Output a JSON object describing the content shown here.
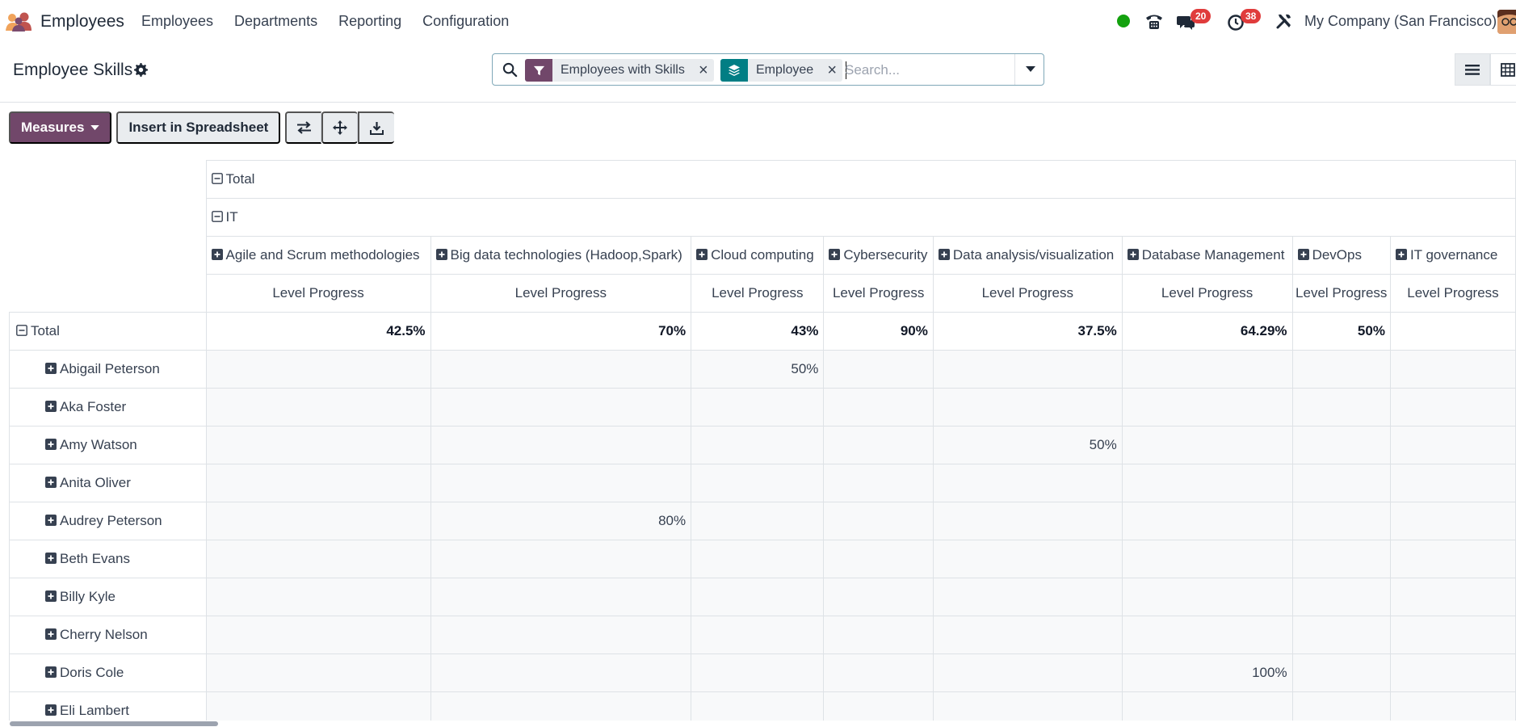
{
  "navbar": {
    "app_name": "Employees",
    "menu": [
      "Employees",
      "Departments",
      "Reporting",
      "Configuration"
    ],
    "messages_count": "20",
    "activities_count": "38",
    "company": "My Company (San Francisco)"
  },
  "control_panel": {
    "title": "Employee Skills",
    "facets": [
      {
        "label": "Employees with Skills",
        "type": "filter",
        "color": "#71476a"
      },
      {
        "label": "Employee",
        "type": "groupby",
        "color": "#017e84"
      }
    ],
    "search_placeholder": "Search..."
  },
  "toolbar": {
    "measures_label": "Measures",
    "insert_label": "Insert in Spreadsheet"
  },
  "pivot": {
    "col_total_label": "Total",
    "col_group_label": "IT",
    "measure_label": "Level Progress",
    "columns": [
      "Agile and Scrum methodologies",
      "Big data technologies (Hadoop,Spark)",
      "Cloud computing",
      "Cybersecurity",
      "Data analysis/visualization",
      "Database Management",
      "DevOps",
      "IT governance"
    ],
    "row_total_label": "Total",
    "totals": [
      "42.5%",
      "70%",
      "43%",
      "90%",
      "37.5%",
      "64.29%",
      "50%",
      ""
    ],
    "rows": [
      {
        "name": "Abigail Peterson",
        "values": [
          "",
          "",
          "50%",
          "",
          "",
          "",
          "",
          ""
        ]
      },
      {
        "name": "Aka Foster",
        "values": [
          "",
          "",
          "",
          "",
          "",
          "",
          "",
          ""
        ]
      },
      {
        "name": "Amy Watson",
        "values": [
          "",
          "",
          "",
          "",
          "50%",
          "",
          "",
          ""
        ]
      },
      {
        "name": "Anita Oliver",
        "values": [
          "",
          "",
          "",
          "",
          "",
          "",
          "",
          ""
        ]
      },
      {
        "name": "Audrey Peterson",
        "values": [
          "",
          "80%",
          "",
          "",
          "",
          "",
          "",
          ""
        ]
      },
      {
        "name": "Beth Evans",
        "values": [
          "",
          "",
          "",
          "",
          "",
          "",
          "",
          ""
        ]
      },
      {
        "name": "Billy Kyle",
        "values": [
          "",
          "",
          "",
          "",
          "",
          "",
          "",
          ""
        ]
      },
      {
        "name": "Cherry Nelson",
        "values": [
          "",
          "",
          "",
          "",
          "",
          "",
          "",
          ""
        ]
      },
      {
        "name": "Doris Cole",
        "values": [
          "",
          "",
          "",
          "",
          "",
          "100%",
          "",
          ""
        ]
      },
      {
        "name": "Eli Lambert",
        "values": [
          "",
          "",
          "",
          "",
          "",
          "",
          "",
          ""
        ]
      }
    ]
  },
  "colors": {
    "primary": "#71476a",
    "teal": "#017e84",
    "badge": "#e03c3c",
    "presence": "#13a10e"
  }
}
